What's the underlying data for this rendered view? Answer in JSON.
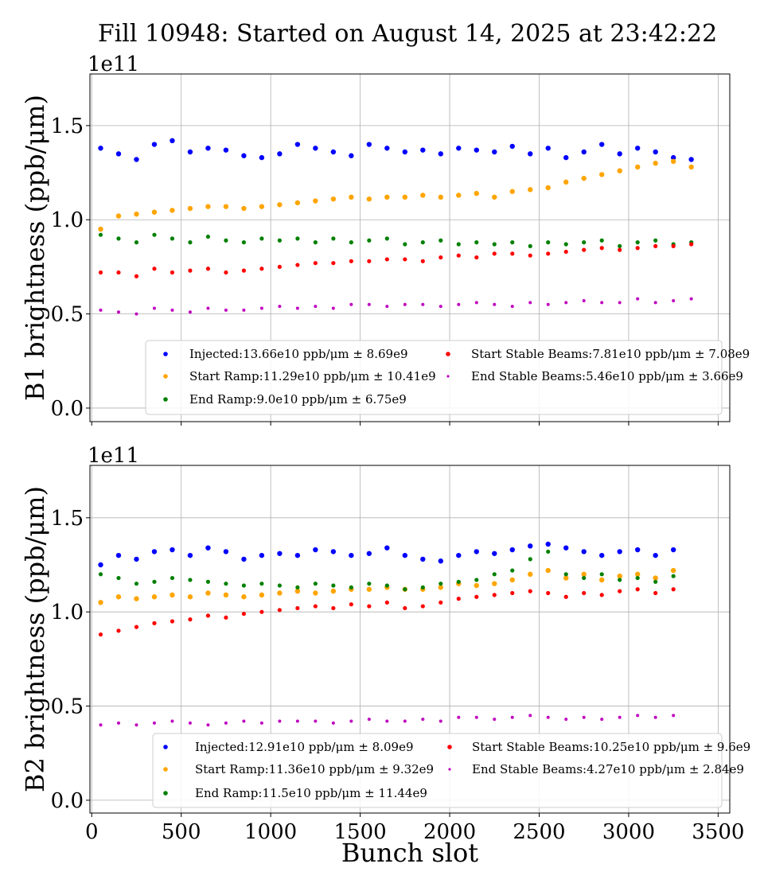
{
  "title": "Fill 10948: Started on August 14, 2025 at 23:42:22",
  "chart_data": [
    {
      "type": "scatter",
      "ylabel": "B1 brightness (ppb/μm)",
      "xlabel": "",
      "offset_label": "1e11",
      "xlim": [
        -10,
        3565
      ],
      "ylim": [
        -0.072,
        1.774
      ],
      "xticks": [
        0,
        500,
        1000,
        1500,
        2000,
        2500,
        3000,
        3500
      ],
      "yticks": [
        "0.0",
        "0.5",
        "1.0",
        "1.5"
      ],
      "grid": true,
      "legend_position": "bottom-right",
      "x": [
        50,
        150,
        250,
        350,
        450,
        550,
        650,
        750,
        850,
        950,
        1050,
        1150,
        1250,
        1350,
        1450,
        1550,
        1650,
        1750,
        1850,
        1950,
        2050,
        2150,
        2250,
        2350,
        2450,
        2550,
        2650,
        2750,
        2850,
        2950,
        3050,
        3150,
        3250,
        3350
      ],
      "series": [
        {
          "name": "Injected:13.66e10 ppb/μm ± 8.69e9",
          "color": "#0000ff",
          "values": [
            1.38,
            1.35,
            1.32,
            1.4,
            1.42,
            1.36,
            1.38,
            1.37,
            1.34,
            1.33,
            1.35,
            1.4,
            1.38,
            1.36,
            1.34,
            1.4,
            1.38,
            1.36,
            1.37,
            1.35,
            1.38,
            1.37,
            1.36,
            1.39,
            1.35,
            1.38,
            1.33,
            1.36,
            1.4,
            1.35,
            1.38,
            1.36,
            1.33,
            1.32
          ]
        },
        {
          "name": "Start Ramp:11.29e10 ppb/μm ± 10.41e9",
          "color": "#ffa500",
          "values": [
            0.95,
            1.02,
            1.03,
            1.04,
            1.05,
            1.06,
            1.07,
            1.07,
            1.06,
            1.07,
            1.08,
            1.09,
            1.1,
            1.11,
            1.12,
            1.11,
            1.12,
            1.12,
            1.13,
            1.12,
            1.13,
            1.14,
            1.12,
            1.15,
            1.16,
            1.17,
            1.2,
            1.22,
            1.24,
            1.26,
            1.28,
            1.3,
            1.31,
            1.28
          ]
        },
        {
          "name": "End Ramp:9.0e10 ppb/μm ± 6.75e9",
          "color": "#008000",
          "values": [
            0.92,
            0.9,
            0.88,
            0.92,
            0.9,
            0.88,
            0.91,
            0.89,
            0.88,
            0.9,
            0.89,
            0.9,
            0.88,
            0.9,
            0.88,
            0.89,
            0.9,
            0.87,
            0.88,
            0.89,
            0.87,
            0.88,
            0.87,
            0.88,
            0.86,
            0.88,
            0.87,
            0.88,
            0.89,
            0.86,
            0.88,
            0.89,
            0.87,
            0.88
          ]
        },
        {
          "name": "Start Stable Beams:7.81e10 ppb/μm ± 7.08e9",
          "color": "#ff0000",
          "values": [
            0.72,
            0.72,
            0.7,
            0.74,
            0.72,
            0.73,
            0.74,
            0.72,
            0.73,
            0.74,
            0.75,
            0.76,
            0.77,
            0.77,
            0.78,
            0.78,
            0.79,
            0.79,
            0.78,
            0.8,
            0.81,
            0.8,
            0.82,
            0.82,
            0.81,
            0.82,
            0.83,
            0.84,
            0.85,
            0.84,
            0.85,
            0.86,
            0.86,
            0.87
          ]
        },
        {
          "name": "End Stable Beams:5.46e10 ppb/μm ± 3.66e9",
          "color": "#bf00bf",
          "values": [
            0.52,
            0.51,
            0.5,
            0.53,
            0.52,
            0.51,
            0.53,
            0.52,
            0.52,
            0.53,
            0.54,
            0.53,
            0.54,
            0.53,
            0.55,
            0.55,
            0.54,
            0.55,
            0.55,
            0.54,
            0.55,
            0.56,
            0.55,
            0.54,
            0.56,
            0.55,
            0.56,
            0.57,
            0.56,
            0.56,
            0.58,
            0.56,
            0.57,
            0.58
          ]
        }
      ]
    },
    {
      "type": "scatter",
      "ylabel": "B2 brightness (ppb/μm)",
      "xlabel": "Bunch slot",
      "offset_label": "1e11",
      "xlim": [
        -10,
        3565
      ],
      "ylim": [
        -0.068,
        1.778
      ],
      "xticks": [
        0,
        500,
        1000,
        1500,
        2000,
        2500,
        3000,
        3500
      ],
      "xticklabels": [
        "0",
        "500",
        "1000",
        "1500",
        "2000",
        "2500",
        "3000",
        "3500"
      ],
      "yticks": [
        "0.0",
        "0.5",
        "1.0",
        "1.5"
      ],
      "grid": true,
      "legend_position": "bottom-right",
      "x": [
        50,
        150,
        250,
        350,
        450,
        550,
        650,
        750,
        850,
        950,
        1050,
        1150,
        1250,
        1350,
        1450,
        1550,
        1650,
        1750,
        1850,
        1950,
        2050,
        2150,
        2250,
        2350,
        2450,
        2550,
        2650,
        2750,
        2850,
        2950,
        3050,
        3150,
        3250
      ],
      "series": [
        {
          "name": "Injected:12.91e10 ppb/μm ± 8.09e9",
          "color": "#0000ff",
          "values": [
            1.25,
            1.3,
            1.28,
            1.32,
            1.33,
            1.3,
            1.34,
            1.32,
            1.28,
            1.3,
            1.31,
            1.3,
            1.33,
            1.32,
            1.3,
            1.31,
            1.34,
            1.3,
            1.28,
            1.27,
            1.3,
            1.32,
            1.31,
            1.33,
            1.35,
            1.36,
            1.34,
            1.32,
            1.3,
            1.32,
            1.33,
            1.3,
            1.33
          ]
        },
        {
          "name": "Start Ramp:11.36e10 ppb/μm ± 9.32e9",
          "color": "#ffa500",
          "values": [
            1.05,
            1.08,
            1.07,
            1.08,
            1.09,
            1.08,
            1.1,
            1.09,
            1.08,
            1.09,
            1.1,
            1.11,
            1.1,
            1.11,
            1.12,
            1.12,
            1.13,
            1.12,
            1.12,
            1.13,
            1.15,
            1.14,
            1.15,
            1.17,
            1.2,
            1.22,
            1.18,
            1.2,
            1.17,
            1.19,
            1.2,
            1.18,
            1.22
          ]
        },
        {
          "name": "End Ramp:11.5e10 ppb/μm ± 11.44e9",
          "color": "#008000",
          "values": [
            1.2,
            1.18,
            1.15,
            1.16,
            1.18,
            1.17,
            1.16,
            1.15,
            1.14,
            1.15,
            1.14,
            1.13,
            1.15,
            1.14,
            1.13,
            1.15,
            1.14,
            1.12,
            1.13,
            1.15,
            1.16,
            1.17,
            1.2,
            1.22,
            1.28,
            1.32,
            1.2,
            1.18,
            1.2,
            1.17,
            1.18,
            1.16,
            1.19
          ]
        },
        {
          "name": "Start Stable Beams:10.25e10 ppb/μm ± 9.6e9",
          "color": "#ff0000",
          "values": [
            0.88,
            0.9,
            0.92,
            0.94,
            0.95,
            0.96,
            0.98,
            0.97,
            0.99,
            1.0,
            1.01,
            1.02,
            1.03,
            1.02,
            1.04,
            1.03,
            1.05,
            1.02,
            1.03,
            1.05,
            1.07,
            1.08,
            1.09,
            1.1,
            1.11,
            1.1,
            1.08,
            1.1,
            1.09,
            1.11,
            1.12,
            1.1,
            1.12
          ]
        },
        {
          "name": "End Stable Beams:4.27e10 ppb/μm ± 2.84e9",
          "color": "#bf00bf",
          "values": [
            0.4,
            0.41,
            0.4,
            0.41,
            0.42,
            0.41,
            0.4,
            0.41,
            0.42,
            0.41,
            0.42,
            0.42,
            0.42,
            0.41,
            0.42,
            0.43,
            0.42,
            0.42,
            0.43,
            0.42,
            0.44,
            0.44,
            0.43,
            0.44,
            0.45,
            0.44,
            0.43,
            0.44,
            0.43,
            0.44,
            0.45,
            0.44,
            0.45
          ]
        }
      ]
    }
  ]
}
